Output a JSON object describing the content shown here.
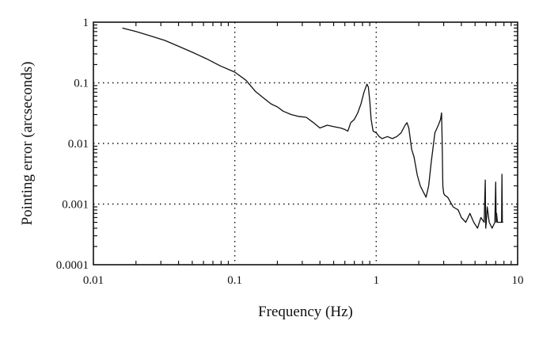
{
  "chart_data": {
    "type": "line",
    "title": "",
    "xlabel": "Frequency (Hz)",
    "ylabel": "Pointing error (arcseconds)",
    "x_scale": "log",
    "y_scale": "log",
    "xlim": [
      0.01,
      10
    ],
    "ylim": [
      0.0001,
      1
    ],
    "grid": true,
    "x_ticks": [
      0.01,
      0.1,
      1,
      10
    ],
    "x_tick_labels": [
      "0.01",
      "0.1",
      "1",
      "10"
    ],
    "y_ticks": [
      0.0001,
      0.001,
      0.01,
      0.1,
      1
    ],
    "y_tick_labels": [
      "0.0001",
      "0.001",
      "0.01",
      "0.1",
      "1"
    ],
    "series": [
      {
        "x": [
          0.016,
          0.02,
          0.025,
          0.032,
          0.04,
          0.05,
          0.063,
          0.079,
          0.1,
          0.12,
          0.14,
          0.16,
          0.18,
          0.2,
          0.22,
          0.25,
          0.28,
          0.32,
          0.36,
          0.4,
          0.45,
          0.5,
          0.56,
          0.6,
          0.63,
          0.66,
          0.7,
          0.74,
          0.78,
          0.82,
          0.86,
          0.88,
          0.9,
          0.92,
          0.95,
          1.0,
          1.05,
          1.1,
          1.2,
          1.3,
          1.4,
          1.5,
          1.6,
          1.65,
          1.7,
          1.78,
          1.85,
          1.95,
          2.05,
          2.15,
          2.25,
          2.35,
          2.45,
          2.6,
          2.75,
          2.85,
          2.9,
          2.93,
          2.96,
          3.0,
          3.05,
          3.2,
          3.5,
          3.8,
          4.0,
          4.3,
          4.6,
          4.9,
          5.2,
          5.5,
          5.8,
          5.9,
          5.95,
          6.0,
          6.1,
          6.3,
          6.6,
          6.9,
          7.0,
          7.05,
          7.1,
          7.2,
          7.5,
          7.7,
          7.75,
          7.8,
          7.9
        ],
        "y": [
          0.8,
          0.7,
          0.6,
          0.5,
          0.4,
          0.32,
          0.25,
          0.19,
          0.15,
          0.11,
          0.072,
          0.056,
          0.045,
          0.04,
          0.034,
          0.03,
          0.028,
          0.027,
          0.022,
          0.018,
          0.02,
          0.019,
          0.018,
          0.017,
          0.016,
          0.022,
          0.025,
          0.032,
          0.045,
          0.07,
          0.095,
          0.085,
          0.05,
          0.025,
          0.016,
          0.015,
          0.013,
          0.012,
          0.013,
          0.012,
          0.013,
          0.015,
          0.02,
          0.022,
          0.018,
          0.008,
          0.006,
          0.003,
          0.002,
          0.0016,
          0.0013,
          0.002,
          0.005,
          0.015,
          0.02,
          0.025,
          0.032,
          0.01,
          0.002,
          0.0015,
          0.0014,
          0.0013,
          0.0009,
          0.0008,
          0.0006,
          0.0005,
          0.0007,
          0.0005,
          0.0004,
          0.0006,
          0.0005,
          0.0025,
          0.0004,
          0.0005,
          0.0009,
          0.0005,
          0.0004,
          0.0005,
          0.0023,
          0.0005,
          0.0007,
          0.0005,
          0.0005,
          0.0005,
          0.0031,
          0.0005,
          0.0005
        ]
      }
    ]
  }
}
